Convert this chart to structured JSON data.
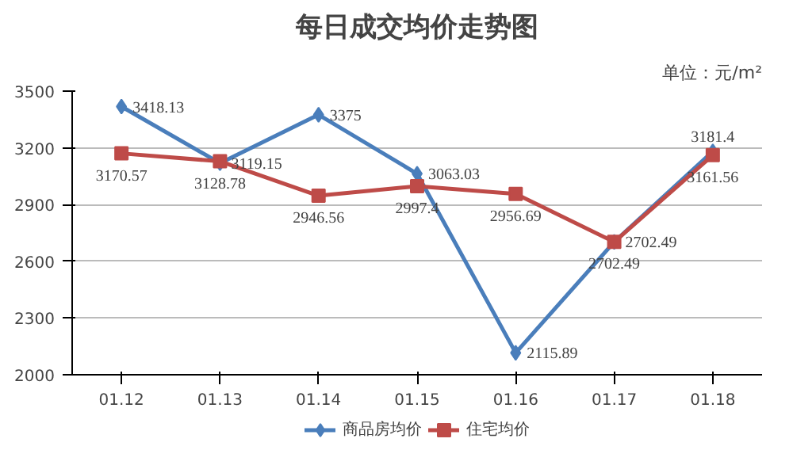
{
  "chart_data": {
    "type": "line",
    "title": "每日成交均价走势图",
    "annotations": [
      "单位：元/m²"
    ],
    "categories": [
      "01.12",
      "01.13",
      "01.14",
      "01.15",
      "01.16",
      "01.17",
      "01.18"
    ],
    "series": [
      {
        "name": "商品房均价",
        "color": "#4a7ebb",
        "marker": "diamond",
        "values": [
          3418.13,
          3119.15,
          3375,
          3063.03,
          2115.89,
          2702.49,
          3181.4
        ]
      },
      {
        "name": "住宅均价",
        "color": "#be4b48",
        "marker": "square",
        "values": [
          3170.57,
          3128.78,
          2946.56,
          2997.4,
          2956.69,
          2702.49,
          3161.56
        ]
      }
    ],
    "ylim": [
      2000,
      3500
    ],
    "yticks": [
      2000,
      2300,
      2600,
      2900,
      3200,
      3500
    ],
    "grid": "y",
    "legend": "bottom",
    "data_labels": true,
    "line_style": "solid"
  }
}
